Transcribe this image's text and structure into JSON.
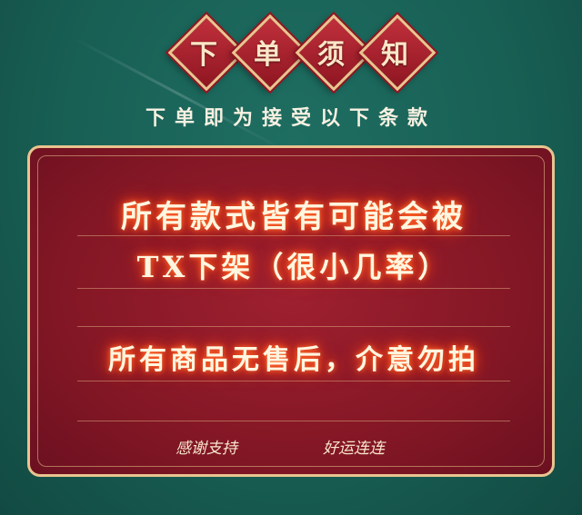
{
  "title_chars": [
    "下",
    "单",
    "须",
    "知"
  ],
  "subtitle": "下单即为接受以下条款",
  "notice": {
    "line1": "所有款式皆有可能会被",
    "line2": "TX下架（很小几率）",
    "line3": "所有商品无售后，介意勿拍"
  },
  "footer": {
    "left": "感谢支持",
    "right": "好运连连"
  },
  "colors": {
    "background": "#185f54",
    "panel": "#841725",
    "gold_border": "#e9c48f",
    "glow": "#ff4a1a"
  }
}
